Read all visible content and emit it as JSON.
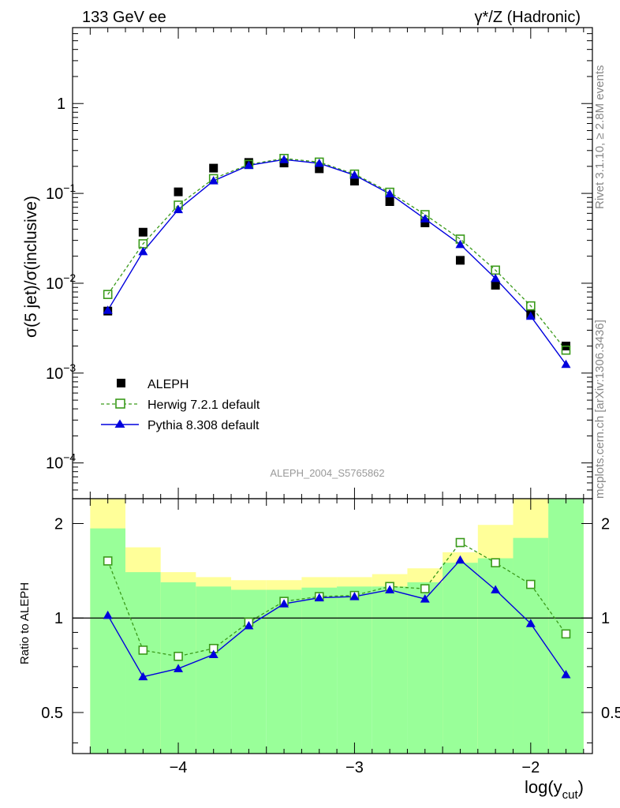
{
  "header": {
    "left": "133 GeV ee",
    "right": "γ*/Z (Hadronic)"
  },
  "side_labels": {
    "rivet": "Rivet 3.1.10, ≥ 2.8M events",
    "mcplots": "mcplots.cern.ch [arXiv:1306.3436]"
  },
  "watermark": "ALEPH_2004_S5765862",
  "colors": {
    "aleph": "#000000",
    "herwig": "#3a9a1a",
    "pythia": "#0000dd",
    "band_inner": "#99ff99",
    "band_outer": "#ffff99"
  },
  "chart_data": [
    {
      "type": "scatter",
      "panel": "main",
      "ylabel": "σ(5 jet)/σ(inclusive)",
      "yscale": "log",
      "ylim": [
        4e-05,
        7
      ],
      "xlim": [
        -4.6,
        -1.65
      ],
      "yticks": [
        {
          "v": 0.0001,
          "m": "10",
          "e": "−4"
        },
        {
          "v": 0.001,
          "m": "10",
          "e": "−3"
        },
        {
          "v": 0.01,
          "m": "10",
          "e": "−2"
        },
        {
          "v": 0.1,
          "m": "10",
          "e": "−1"
        },
        {
          "v": 1,
          "m": "1",
          "e": ""
        }
      ],
      "x": [
        -4.4,
        -4.2,
        -4.0,
        -3.8,
        -3.6,
        -3.4,
        -3.2,
        -3.0,
        -2.8,
        -2.6,
        -2.4,
        -2.2,
        -2.0,
        -1.8
      ],
      "series": [
        {
          "name": "ALEPH",
          "style": "marker",
          "values": [
            0.0049,
            0.037,
            0.104,
            0.191,
            0.221,
            0.218,
            0.188,
            0.137,
            0.081,
            0.047,
            0.018,
            0.0095,
            0.0045,
            0.002
          ]
        },
        {
          "name": "Herwig 7.2.1 default",
          "style": "dashed-open-square",
          "values": [
            0.0075,
            0.0275,
            0.074,
            0.146,
            0.21,
            0.245,
            0.223,
            0.164,
            0.103,
            0.058,
            0.031,
            0.014,
            0.0056,
            0.0018
          ]
        },
        {
          "name": "Pythia 8.308 default",
          "style": "solid-triangle",
          "values": [
            0.005,
            0.0225,
            0.066,
            0.138,
            0.205,
            0.238,
            0.216,
            0.16,
            0.099,
            0.052,
            0.027,
            0.0113,
            0.0043,
            0.00125
          ]
        }
      ],
      "legend": "lower-left"
    },
    {
      "type": "scatter",
      "panel": "ratio",
      "ylabel": "Ratio to ALEPH",
      "xlabel": "log(y_cut)",
      "xlabel_main": "log(y",
      "xlabel_sub": "cut",
      "xlabel_end": ")",
      "ylim": [
        0.37,
        2.4
      ],
      "yticks": [
        {
          "v": 0.5,
          "t": "0.5"
        },
        {
          "v": 1,
          "t": "1"
        },
        {
          "v": 2,
          "t": "2"
        }
      ],
      "xticks": [
        {
          "v": -4,
          "t": "−4"
        },
        {
          "v": -3,
          "t": "−3"
        },
        {
          "v": -2,
          "t": "−2"
        }
      ],
      "bins": [
        -4.5,
        -4.3,
        -4.1,
        -3.9,
        -3.7,
        -3.5,
        -3.3,
        -3.1,
        -2.9,
        -2.7,
        -2.5,
        -2.3,
        -2.1,
        -1.9,
        -1.7
      ],
      "band_inner": {
        "lo": [
          0.37,
          0.37,
          0.37,
          0.37,
          0.37,
          0.37,
          0.37,
          0.37,
          0.37,
          0.37,
          0.37,
          0.37,
          0.37,
          0.37
        ],
        "hi": [
          1.93,
          1.4,
          1.3,
          1.26,
          1.23,
          1.23,
          1.25,
          1.26,
          1.26,
          1.3,
          1.5,
          1.55,
          1.8,
          2.4
        ]
      },
      "band_outer": {
        "lo": [
          0.37,
          0.73,
          0.37,
          0.79,
          0.81,
          0.8,
          0.76,
          0.75,
          0.65,
          0.55,
          0.41,
          0.37,
          0.37,
          0.37
        ],
        "hi": [
          2.4,
          1.68,
          1.4,
          1.35,
          1.32,
          1.32,
          1.35,
          1.35,
          1.38,
          1.44,
          1.62,
          1.98,
          2.4,
          2.4
        ]
      },
      "series": [
        {
          "name": "Herwig 7.2.1 default",
          "values": [
            1.52,
            0.79,
            0.755,
            0.8,
            0.97,
            1.13,
            1.17,
            1.18,
            1.26,
            1.24,
            1.74,
            1.5,
            1.28,
            0.89
          ]
        },
        {
          "name": "Pythia 8.308 default",
          "values": [
            1.02,
            0.65,
            0.69,
            0.765,
            0.945,
            1.11,
            1.16,
            1.17,
            1.23,
            1.15,
            1.53,
            1.23,
            0.96,
            0.66
          ]
        }
      ]
    }
  ]
}
